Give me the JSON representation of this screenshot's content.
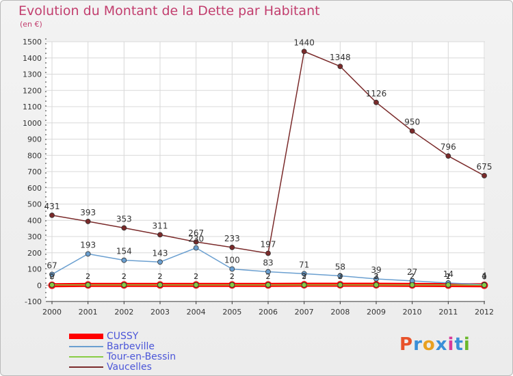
{
  "title": "Evolution du Montant de la Dette par Habitant",
  "subtitle": "(en €)",
  "logo": {
    "text": "Proxiti",
    "colors": [
      "#e8522a",
      "#3a8fd8",
      "#e8a020",
      "#3a8fd8",
      "#d83a9a",
      "#3a8fd8",
      "#6ab82a"
    ]
  },
  "chart_data": {
    "type": "line",
    "x": [
      "2000",
      "2001",
      "2002",
      "2003",
      "2004",
      "2005",
      "2006",
      "2007",
      "2008",
      "2009",
      "2010",
      "2011",
      "2012"
    ],
    "ylim": [
      -100,
      1500
    ],
    "yticks": [
      -100,
      0,
      100,
      200,
      300,
      400,
      500,
      600,
      700,
      800,
      900,
      1000,
      1100,
      1200,
      1300,
      1400,
      1500
    ],
    "grid": true,
    "legend_position": "bottom-left",
    "series": [
      {
        "name": "CUSSY",
        "color": "#ff0000",
        "values": [
          0,
          2,
          2,
          2,
          2,
          2,
          2,
          3,
          3,
          3,
          2,
          1,
          0
        ]
      },
      {
        "name": "Barbeville",
        "color": "#6a9fd0",
        "values": [
          67,
          193,
          154,
          143,
          230,
          100,
          83,
          71,
          58,
          39,
          27,
          14,
          4
        ]
      },
      {
        "name": "Tour-en-Bessin",
        "color": "#88cc44",
        "values": [
          2,
          2,
          2,
          2,
          2,
          2,
          2,
          2,
          2,
          2,
          2,
          2,
          1
        ]
      },
      {
        "name": "Vaucelles",
        "color": "#7a2a2a",
        "values": [
          431,
          393,
          353,
          311,
          267,
          233,
          197,
          1440,
          1348,
          1126,
          950,
          796,
          675
        ]
      }
    ],
    "labels": [
      {
        "x": "2000",
        "text": "431"
      },
      {
        "x": "2001",
        "text": "393"
      },
      {
        "x": "2002",
        "text": "353"
      },
      {
        "x": "2003",
        "text": "311"
      },
      {
        "x": "2004",
        "text": "267"
      },
      {
        "x": "2005",
        "text": "233"
      },
      {
        "x": "2006",
        "text": "197"
      },
      {
        "x": "2007",
        "text": "1440"
      },
      {
        "x": "2008",
        "text": "1348"
      },
      {
        "x": "2009",
        "text": "1126"
      },
      {
        "x": "2010",
        "text": "950"
      },
      {
        "x": "2011",
        "text": "796"
      },
      {
        "x": "2012",
        "text": "675"
      },
      {
        "x": "2000",
        "text": "67"
      },
      {
        "x": "2001",
        "text": "193"
      },
      {
        "x": "2002",
        "text": "154"
      },
      {
        "x": "2003",
        "text": "143"
      },
      {
        "x": "2004",
        "text": "230"
      },
      {
        "x": "2005",
        "text": "100"
      },
      {
        "x": "2006",
        "text": "83"
      },
      {
        "x": "2007",
        "text": "71"
      },
      {
        "x": "2008",
        "text": "58"
      },
      {
        "x": "2009",
        "text": "39"
      },
      {
        "x": "2010",
        "text": "27"
      },
      {
        "x": "2011",
        "text": "14"
      },
      {
        "x": "2012",
        "text": "4"
      }
    ]
  }
}
